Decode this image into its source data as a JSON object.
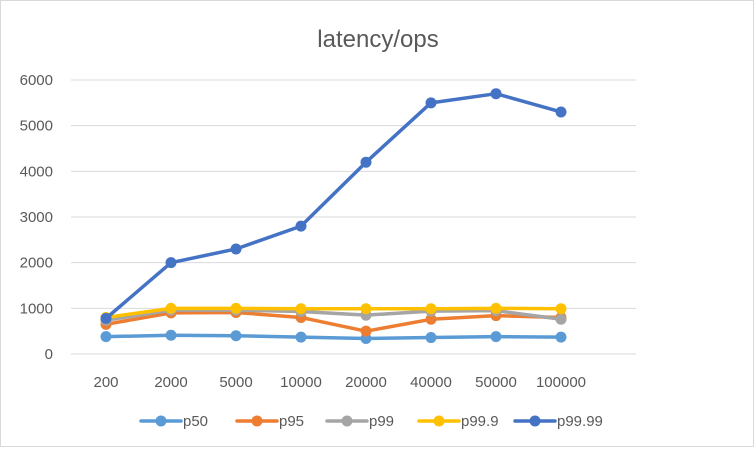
{
  "chart_data": {
    "type": "line",
    "title": "latency/ops",
    "xlabel": "",
    "ylabel": "",
    "categories": [
      "200",
      "2000",
      "5000",
      "10000",
      "20000",
      "40000",
      "50000",
      "100000"
    ],
    "ylim": [
      0,
      6000
    ],
    "yticks": [
      0,
      1000,
      2000,
      3000,
      4000,
      5000,
      6000
    ],
    "grid": true,
    "legend_position": "bottom",
    "series": [
      {
        "name": "p50",
        "color": "#5B9BD5",
        "values": [
          380,
          410,
          400,
          370,
          340,
          360,
          380,
          370
        ]
      },
      {
        "name": "p95",
        "color": "#ED7D31",
        "values": [
          650,
          900,
          910,
          800,
          500,
          760,
          840,
          800
        ]
      },
      {
        "name": "p99",
        "color": "#A5A5A5",
        "values": [
          740,
          960,
          960,
          930,
          850,
          940,
          950,
          760
        ]
      },
      {
        "name": "p99.9",
        "color": "#FFC000",
        "values": [
          800,
          1000,
          1000,
          990,
          990,
          990,
          1000,
          990
        ]
      },
      {
        "name": "p99.99",
        "color": "#4472C4",
        "values": [
          780,
          2000,
          2300,
          2800,
          4200,
          5500,
          5700,
          5300
        ]
      }
    ]
  }
}
